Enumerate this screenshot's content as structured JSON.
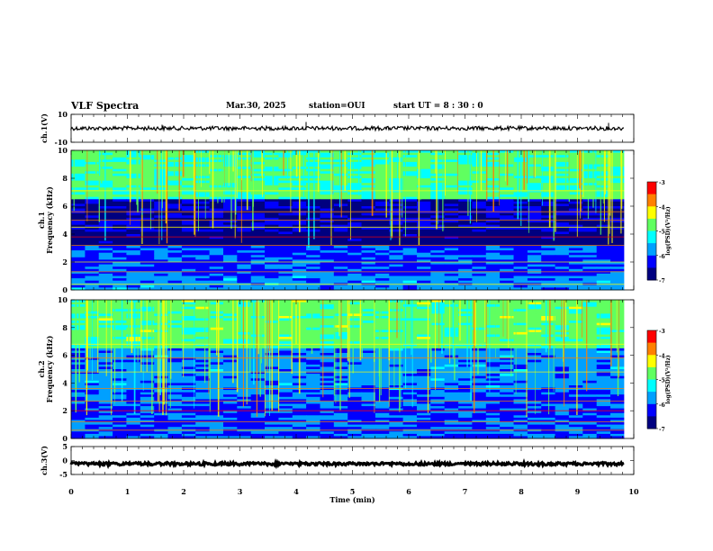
{
  "header": {
    "title": "VLF Spectra",
    "date": "Mar.30, 2025",
    "station": "station=OUI",
    "start_ut": "start UT =  8 : 30 : 0"
  },
  "chart_data": [
    {
      "type": "line",
      "panel": "ch1-waveform",
      "ylabel": "ch.1(V)",
      "ylim": [
        -10,
        10
      ],
      "yticks": [
        "10",
        "-10"
      ],
      "x_range": [
        0,
        9.83
      ],
      "baseline_value": 0,
      "color": "#000000"
    },
    {
      "type": "heatmap",
      "panel": "ch1-spectrogram",
      "ylabel_top": "ch.1",
      "ylabel": "Frequency (kHz)",
      "ylim": [
        0,
        10
      ],
      "yticks": [
        "0",
        "2",
        "4",
        "6",
        "8",
        "10"
      ],
      "x_range": [
        0,
        9.83
      ],
      "colorbar": {
        "label": "log(PSD)(V²/Hz)",
        "range": [
          -7,
          -3
        ],
        "ticks": [
          "-3",
          "-4",
          "-5",
          "-6",
          "-7"
        ]
      }
    },
    {
      "type": "heatmap",
      "panel": "ch2-spectrogram",
      "ylabel_top": "ch.2",
      "ylabel": "Frequency (kHz)",
      "ylim": [
        0,
        10
      ],
      "yticks": [
        "0",
        "2",
        "4",
        "6",
        "8",
        "10"
      ],
      "x_range": [
        0,
        9.83
      ],
      "colorbar": {
        "label": "log(PSD)(V²/Hz)",
        "range": [
          -7,
          -3
        ],
        "ticks": [
          "-3",
          "-4",
          "-5",
          "-6",
          "-7"
        ]
      }
    },
    {
      "type": "line",
      "panel": "ch3-waveform",
      "ylabel": "ch.3(V)",
      "ylim": [
        -5,
        5
      ],
      "yticks": [
        "5",
        "0",
        "-5"
      ],
      "x_range": [
        0,
        9.83
      ],
      "baseline_value": -1.2,
      "color": "#000000"
    }
  ],
  "xaxis": {
    "label": "Time (min)",
    "range": [
      0,
      10
    ],
    "ticks": [
      "0",
      "1",
      "2",
      "3",
      "4",
      "5",
      "6",
      "7",
      "8",
      "9",
      "10"
    ]
  },
  "colors": {
    "cmap": [
      "#000080",
      "#0000ff",
      "#00a0ff",
      "#00ffff",
      "#60ff60",
      "#ffff00",
      "#ff8000",
      "#ff0000",
      "#ffffff"
    ]
  }
}
